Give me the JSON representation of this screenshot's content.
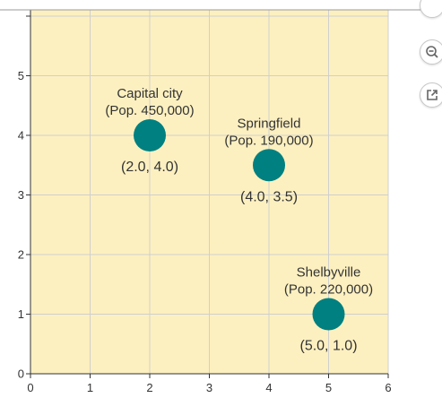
{
  "chart_data": {
    "type": "scatter",
    "title": "",
    "xlabel": "",
    "ylabel": "",
    "xlim": [
      0,
      6
    ],
    "ylim": [
      0,
      6
    ],
    "x_ticks": [
      "0",
      "1",
      "2",
      "3",
      "4",
      "5",
      "6"
    ],
    "y_ticks": [
      "0",
      "1",
      "2",
      "3",
      "4",
      "5"
    ],
    "grid": true,
    "background_color": "#fdf0c0",
    "grid_color": "#cfcfcf",
    "point_color": "#008080",
    "points": [
      {
        "name": "Capital city",
        "population": "(Pop. 450,000)",
        "x": 2.0,
        "y": 4.0,
        "coord_label": "(2.0, 4.0)"
      },
      {
        "name": "Springfield",
        "population": "(Pop. 190,000)",
        "x": 4.0,
        "y": 3.5,
        "coord_label": "(4.0, 3.5)"
      },
      {
        "name": "Shelbyville",
        "population": "(Pop. 220,000)",
        "x": 5.0,
        "y": 1.0,
        "coord_label": "(5.0, 1.0)"
      }
    ]
  },
  "toolbar": {
    "buttons": [
      {
        "icon": "zoom-out-icon"
      },
      {
        "icon": "open-external-icon"
      }
    ]
  }
}
